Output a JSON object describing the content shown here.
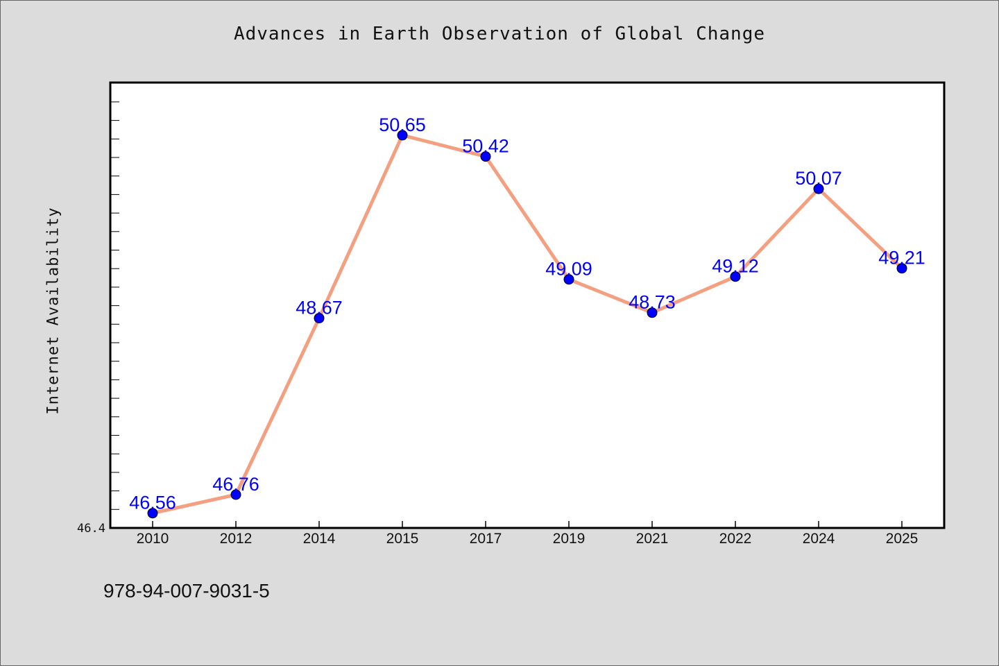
{
  "chart_data": {
    "type": "line",
    "title": "Advances in Earth Observation of Global Change",
    "xlabel": "",
    "ylabel": "Internet Availability",
    "categories": [
      "2010",
      "2012",
      "2014",
      "2015",
      "2017",
      "2019",
      "2021",
      "2022",
      "2024",
      "2025"
    ],
    "values": [
      46.56,
      46.76,
      48.67,
      50.65,
      50.42,
      49.09,
      48.73,
      49.12,
      50.07,
      49.21
    ],
    "data_labels": [
      "46.56",
      "46.76",
      "48.67",
      "50.65",
      "50.42",
      "49.09",
      "48.73",
      "49.12",
      "50.07",
      "49.21"
    ],
    "y_tick_label": "46.4",
    "ylim": [
      46.4,
      51.22
    ],
    "grid": false,
    "legend": "none",
    "line_color": "#f4a080",
    "marker_color": "#0000ff",
    "label_color": "#0000ff"
  },
  "footer_text": "978-94-007-9031-5"
}
